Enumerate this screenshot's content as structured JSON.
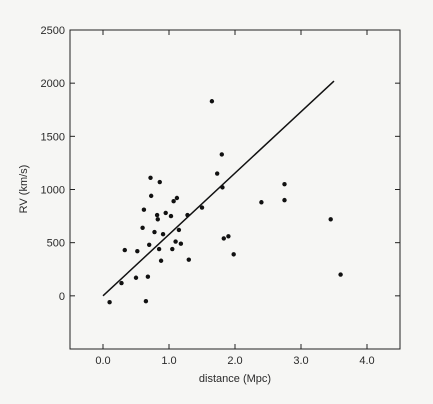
{
  "chart_data": {
    "type": "scatter",
    "title": "",
    "xlabel": "distance (Mpc)",
    "ylabel": "RV (km/s)",
    "xlim": [
      -0.5,
      4.5
    ],
    "ylim": [
      -500,
      2500
    ],
    "xticks": [
      0.0,
      1.0,
      2.0,
      3.0,
      4.0
    ],
    "xtick_labels": [
      "0.0",
      "1.0",
      "2.0",
      "3.0",
      "4.0"
    ],
    "yticks": [
      0,
      500,
      1000,
      1500,
      2000,
      2500
    ],
    "ytick_labels": [
      "0",
      "500",
      "1000",
      "1500",
      "2000",
      "2500"
    ],
    "grid": false,
    "colors": {
      "points": "#111111",
      "line": "#111111",
      "frame": "#222222",
      "background": "#f6f6f4"
    },
    "series": [
      {
        "type": "scatter",
        "points": [
          {
            "x": 0.1,
            "y": -60
          },
          {
            "x": 0.28,
            "y": 120
          },
          {
            "x": 0.33,
            "y": 430
          },
          {
            "x": 0.5,
            "y": 170
          },
          {
            "x": 0.52,
            "y": 420
          },
          {
            "x": 0.6,
            "y": 640
          },
          {
            "x": 0.62,
            "y": 810
          },
          {
            "x": 0.65,
            "y": -50
          },
          {
            "x": 0.68,
            "y": 180
          },
          {
            "x": 0.7,
            "y": 480
          },
          {
            "x": 0.72,
            "y": 1110
          },
          {
            "x": 0.73,
            "y": 940
          },
          {
            "x": 0.78,
            "y": 600
          },
          {
            "x": 0.82,
            "y": 760
          },
          {
            "x": 0.83,
            "y": 720
          },
          {
            "x": 0.85,
            "y": 440
          },
          {
            "x": 0.86,
            "y": 1070
          },
          {
            "x": 0.88,
            "y": 330
          },
          {
            "x": 0.91,
            "y": 580
          },
          {
            "x": 0.95,
            "y": 780
          },
          {
            "x": 1.03,
            "y": 750
          },
          {
            "x": 1.05,
            "y": 440
          },
          {
            "x": 1.07,
            "y": 890
          },
          {
            "x": 1.1,
            "y": 510
          },
          {
            "x": 1.12,
            "y": 920
          },
          {
            "x": 1.15,
            "y": 620
          },
          {
            "x": 1.18,
            "y": 490
          },
          {
            "x": 1.28,
            "y": 760
          },
          {
            "x": 1.3,
            "y": 340
          },
          {
            "x": 1.5,
            "y": 830
          },
          {
            "x": 1.65,
            "y": 1830
          },
          {
            "x": 1.73,
            "y": 1150
          },
          {
            "x": 1.8,
            "y": 1330
          },
          {
            "x": 1.81,
            "y": 1020
          },
          {
            "x": 1.83,
            "y": 540
          },
          {
            "x": 1.9,
            "y": 560
          },
          {
            "x": 1.98,
            "y": 390
          },
          {
            "x": 2.4,
            "y": 880
          },
          {
            "x": 2.75,
            "y": 1050
          },
          {
            "x": 2.75,
            "y": 900
          },
          {
            "x": 3.45,
            "y": 720
          },
          {
            "x": 3.6,
            "y": 200
          }
        ]
      },
      {
        "type": "line",
        "points": [
          {
            "x": 0.0,
            "y": 0
          },
          {
            "x": 3.5,
            "y": 2020
          }
        ]
      }
    ]
  }
}
